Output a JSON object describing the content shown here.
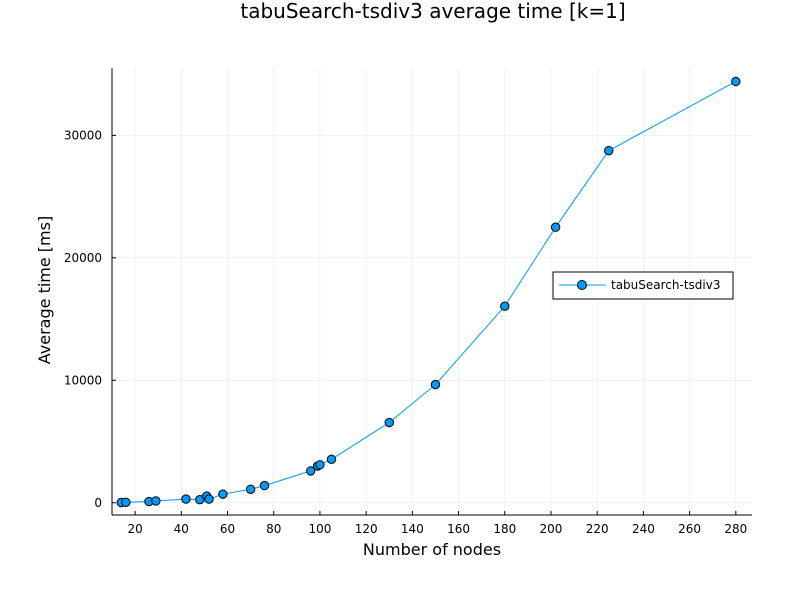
{
  "chart_data": {
    "type": "line",
    "title": "tabuSearch-tsdiv3 average time [k=1]",
    "xlabel": "Number of nodes",
    "ylabel": "Average time [ms]",
    "xlim": [
      10,
      287
    ],
    "ylim": [
      -1000,
      35500
    ],
    "xticks": [
      20,
      40,
      60,
      80,
      100,
      120,
      140,
      160,
      180,
      200,
      220,
      240,
      260,
      280
    ],
    "yticks": [
      0,
      10000,
      20000,
      30000
    ],
    "grid": true,
    "legend_position": "right",
    "series": [
      {
        "name": "tabuSearch-tsdiv3",
        "color": "#009af9",
        "marker": "circle",
        "x": [
          14,
          16,
          26,
          29,
          42,
          48,
          51,
          52,
          58,
          70,
          76,
          96,
          99,
          100,
          105,
          130,
          150,
          180,
          202,
          225,
          280
        ],
        "y": [
          20,
          40,
          100,
          150,
          300,
          250,
          550,
          300,
          700,
          1100,
          1400,
          2600,
          3000,
          3100,
          3550,
          6550,
          9650,
          16050,
          22500,
          28750,
          34400
        ]
      }
    ]
  }
}
